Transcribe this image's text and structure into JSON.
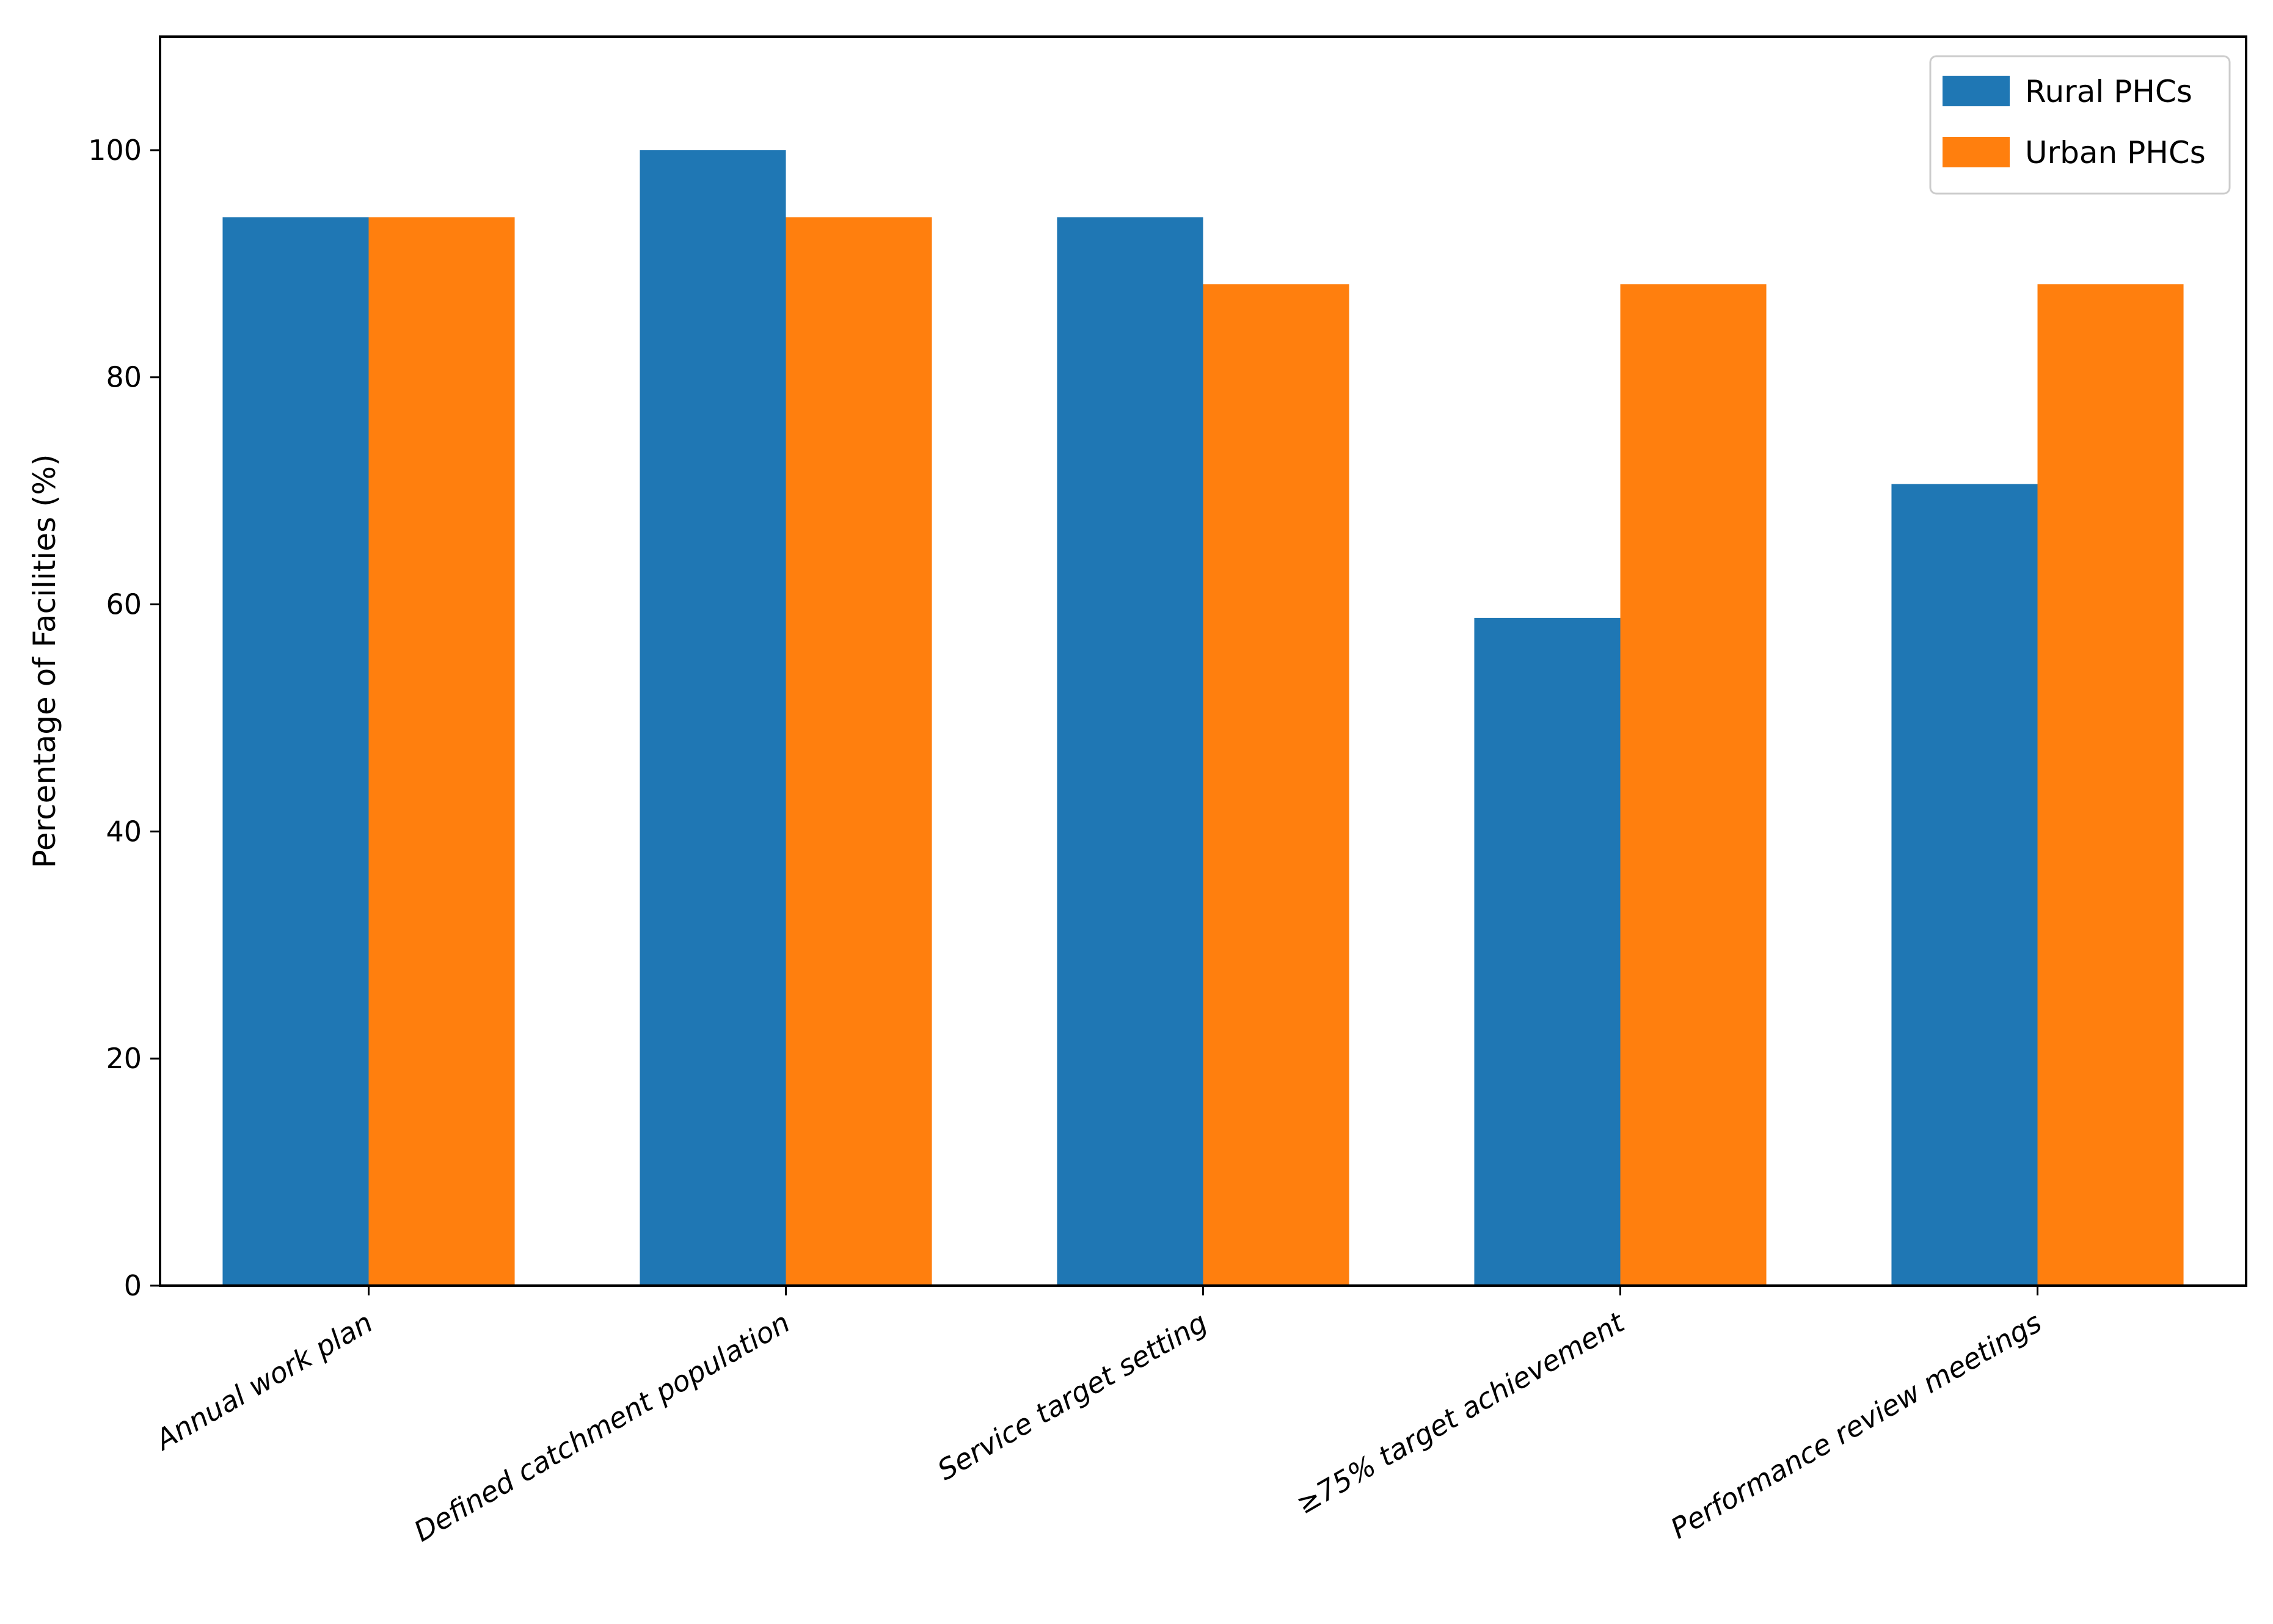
{
  "chart_data": {
    "type": "bar",
    "title": "",
    "xlabel": "",
    "ylabel": "Percentage of Facilities (%)",
    "ylim": [
      0,
      110
    ],
    "yticks": [
      0,
      20,
      40,
      60,
      80,
      100
    ],
    "grid": false,
    "legend_placement": "top-right",
    "categories": [
      "Annual work plan",
      "Defined catchment population",
      "Service target setting",
      "≥75% target achievement",
      "Performance review meetings"
    ],
    "series": [
      {
        "name": "Rural PHCs",
        "color": "#1f77b4",
        "values": [
          94.1,
          100,
          94.1,
          58.8,
          70.6
        ]
      },
      {
        "name": "Urban PHCs",
        "color": "#ff7f0e",
        "values": [
          94.1,
          94.1,
          88.2,
          88.2,
          88.2
        ]
      }
    ]
  }
}
